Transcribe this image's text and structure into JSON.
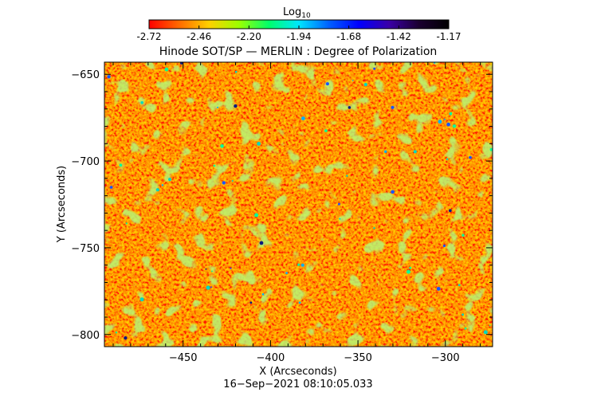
{
  "colorbar": {
    "label": "Log",
    "label_subscript": "10",
    "ticks": [
      "-2.72",
      "-2.46",
      "-2.20",
      "-1.94",
      "-1.68",
      "-1.42",
      "-1.17"
    ],
    "range": [
      -2.72,
      -1.17
    ],
    "colors": [
      "#ff0000",
      "#ff6a00",
      "#ffd000",
      "#9cff00",
      "#00ff6a",
      "#00e6ff",
      "#0060ff",
      "#0000ff",
      "#3a00a8",
      "#1a0030",
      "#000000"
    ]
  },
  "plot": {
    "title": "Hinode SOT/SP — MERLIN : Degree of Polarization",
    "xlabel": "X (Arcseconds)",
    "ylabel": "Y (Arcseconds)",
    "xlim": [
      -495,
      -273
    ],
    "ylim": [
      -807,
      -643
    ],
    "xticks": [
      {
        "value": -450,
        "label": "−450"
      },
      {
        "value": -400,
        "label": "−400"
      },
      {
        "value": -350,
        "label": "−350"
      },
      {
        "value": -300,
        "label": "−300"
      }
    ],
    "yticks": [
      {
        "value": -650,
        "label": "−650"
      },
      {
        "value": -700,
        "label": "−700"
      },
      {
        "value": -750,
        "label": "−750"
      },
      {
        "value": -800,
        "label": "−800"
      }
    ],
    "timestamp": "16−Sep−2021 08:10:05.033"
  }
}
